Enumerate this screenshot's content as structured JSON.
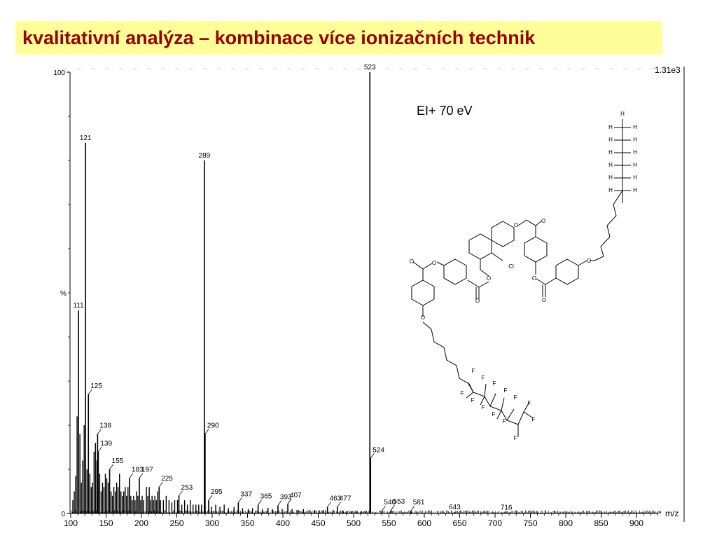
{
  "slide": {
    "title": "kvalitativní analýza – kombinace více ionizačních technik"
  },
  "chart_data": {
    "type": "mass-spectrum",
    "xlabel": "m/z",
    "ylabel": "%",
    "xlim": [
      100,
      935
    ],
    "ylim": [
      0,
      100
    ],
    "x_ticks": [
      100,
      150,
      200,
      250,
      300,
      350,
      400,
      450,
      500,
      550,
      600,
      650,
      700,
      750,
      800,
      850,
      900
    ],
    "y_ticks": [
      0,
      100
    ],
    "intensity_max_label": "1.31e3",
    "annotation": "EI+ 70 eV",
    "peaks": [
      {
        "mz": 111,
        "intensity": 46,
        "label": "111"
      },
      {
        "mz": 121,
        "intensity": 84,
        "label": "121"
      },
      {
        "mz": 125,
        "intensity": 27,
        "label": "125"
      },
      {
        "mz": 138,
        "intensity": 18,
        "label": "138"
      },
      {
        "mz": 139,
        "intensity": 14,
        "label": "139"
      },
      {
        "mz": 155,
        "intensity": 10,
        "label": "155"
      },
      {
        "mz": 183,
        "intensity": 8,
        "label": "183"
      },
      {
        "mz": 197,
        "intensity": 8,
        "label": "197"
      },
      {
        "mz": 225,
        "intensity": 6,
        "label": "225"
      },
      {
        "mz": 253,
        "intensity": 4,
        "label": "253"
      },
      {
        "mz": 289,
        "intensity": 80,
        "label": "289"
      },
      {
        "mz": 290,
        "intensity": 18,
        "label": "290"
      },
      {
        "mz": 295,
        "intensity": 3,
        "label": "295"
      },
      {
        "mz": 337,
        "intensity": 2.5,
        "label": "337"
      },
      {
        "mz": 365,
        "intensity": 2,
        "label": "365"
      },
      {
        "mz": 393,
        "intensity": 1.8,
        "label": "393"
      },
      {
        "mz": 407,
        "intensity": 2.2,
        "label": "407"
      },
      {
        "mz": 463,
        "intensity": 1.5,
        "label": "463"
      },
      {
        "mz": 477,
        "intensity": 1.5,
        "label": "477"
      },
      {
        "mz": 523,
        "intensity": 100,
        "label": "523"
      },
      {
        "mz": 524,
        "intensity": 12.5,
        "label": "524"
      },
      {
        "mz": 540,
        "intensity": 0.6,
        "label": "540"
      },
      {
        "mz": 553,
        "intensity": 0.8,
        "label": "553"
      },
      {
        "mz": 581,
        "intensity": 0.6,
        "label": "581"
      },
      {
        "mz": 643,
        "intensity": 0.3,
        "label": "643"
      },
      {
        "mz": 716,
        "intensity": 0.2,
        "label": "716"
      }
    ],
    "minor_peaks": [
      [
        103,
        3
      ],
      [
        105,
        5
      ],
      [
        107,
        8.5
      ],
      [
        109,
        22
      ],
      [
        113,
        18
      ],
      [
        115,
        7
      ],
      [
        117,
        12
      ],
      [
        119,
        20
      ],
      [
        123,
        10
      ],
      [
        127,
        9
      ],
      [
        129,
        6
      ],
      [
        131,
        7
      ],
      [
        133,
        14
      ],
      [
        135,
        16
      ],
      [
        137,
        12
      ],
      [
        141,
        9
      ],
      [
        143,
        5
      ],
      [
        145,
        7
      ],
      [
        147,
        6
      ],
      [
        149,
        9
      ],
      [
        151,
        8
      ],
      [
        153,
        7
      ],
      [
        157,
        5
      ],
      [
        159,
        4
      ],
      [
        161,
        6
      ],
      [
        163,
        5
      ],
      [
        165,
        7
      ],
      [
        167,
        6
      ],
      [
        169,
        9
      ],
      [
        171,
        5
      ],
      [
        173,
        4
      ],
      [
        175,
        5
      ],
      [
        177,
        6
      ],
      [
        179,
        4
      ],
      [
        181,
        6
      ],
      [
        185,
        4
      ],
      [
        187,
        3
      ],
      [
        189,
        4
      ],
      [
        191,
        3
      ],
      [
        193,
        5
      ],
      [
        195,
        4
      ],
      [
        199,
        3
      ],
      [
        201,
        4
      ],
      [
        203,
        3
      ],
      [
        207,
        6
      ],
      [
        209,
        4
      ],
      [
        211,
        6
      ],
      [
        213,
        3
      ],
      [
        215,
        4
      ],
      [
        217,
        3
      ],
      [
        219,
        4
      ],
      [
        221,
        3
      ],
      [
        223,
        5
      ],
      [
        227,
        3
      ],
      [
        231,
        3
      ],
      [
        235,
        4
      ],
      [
        239,
        3
      ],
      [
        243,
        2.5
      ],
      [
        247,
        3
      ],
      [
        251,
        3
      ],
      [
        257,
        2
      ],
      [
        261,
        3
      ],
      [
        265,
        2
      ],
      [
        269,
        3
      ],
      [
        273,
        2
      ],
      [
        277,
        2
      ],
      [
        281,
        2
      ],
      [
        285,
        2
      ],
      [
        299,
        1.5
      ],
      [
        305,
        2
      ],
      [
        311,
        1.5
      ],
      [
        317,
        2
      ],
      [
        323,
        1.2
      ],
      [
        331,
        1.5
      ],
      [
        343,
        1.2
      ],
      [
        351,
        1
      ],
      [
        357,
        1.2
      ],
      [
        371,
        1
      ],
      [
        379,
        1.3
      ],
      [
        385,
        1
      ],
      [
        399,
        1
      ],
      [
        413,
        1
      ],
      [
        421,
        0.8
      ],
      [
        429,
        1
      ],
      [
        437,
        0.8
      ],
      [
        445,
        0.8
      ],
      [
        451,
        0.7
      ],
      [
        457,
        0.8
      ],
      [
        471,
        0.8
      ],
      [
        485,
        0.7
      ],
      [
        491,
        0.6
      ],
      [
        497,
        0.5
      ],
      [
        505,
        0.6
      ],
      [
        511,
        0.5
      ],
      [
        517,
        0.5
      ]
    ]
  },
  "structure": {
    "atoms": [
      "H",
      "O",
      "Cl",
      "F"
    ]
  }
}
